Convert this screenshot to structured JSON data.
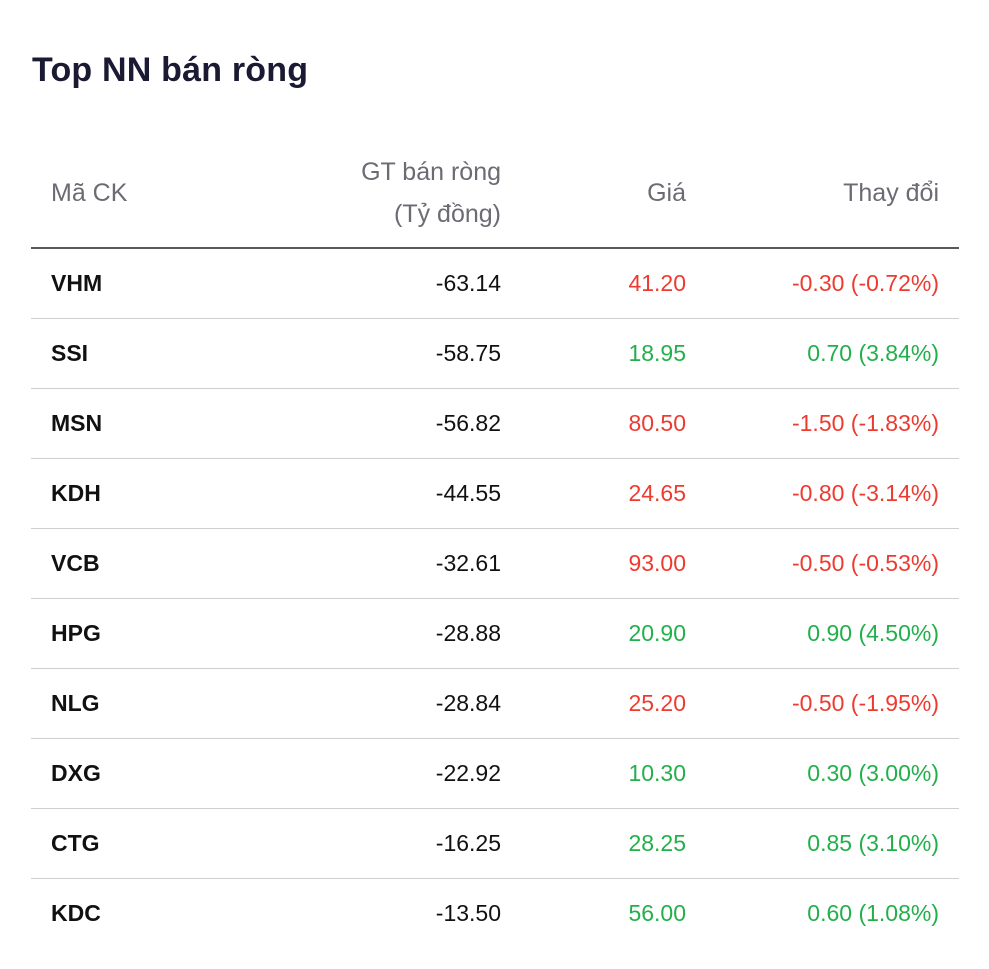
{
  "title": "Top NN bán ròng",
  "columns": {
    "symbol": "Mã CK",
    "net_value_line1": "GT bán ròng",
    "net_value_line2": "(Tỷ đồng)",
    "price": "Giá",
    "change": "Thay đổi"
  },
  "colors": {
    "up": "#22b04b",
    "down": "#ee3b30"
  },
  "rows": [
    {
      "symbol": "VHM",
      "net_value": "-63.14",
      "price": "41.20",
      "change": "-0.30 (-0.72%)",
      "direction": "down"
    },
    {
      "symbol": "SSI",
      "net_value": "-58.75",
      "price": "18.95",
      "change": "0.70 (3.84%)",
      "direction": "up"
    },
    {
      "symbol": "MSN",
      "net_value": "-56.82",
      "price": "80.50",
      "change": "-1.50 (-1.83%)",
      "direction": "down"
    },
    {
      "symbol": "KDH",
      "net_value": "-44.55",
      "price": "24.65",
      "change": "-0.80 (-3.14%)",
      "direction": "down"
    },
    {
      "symbol": "VCB",
      "net_value": "-32.61",
      "price": "93.00",
      "change": "-0.50 (-0.53%)",
      "direction": "down"
    },
    {
      "symbol": "HPG",
      "net_value": "-28.88",
      "price": "20.90",
      "change": "0.90 (4.50%)",
      "direction": "up"
    },
    {
      "symbol": "NLG",
      "net_value": "-28.84",
      "price": "25.20",
      "change": "-0.50 (-1.95%)",
      "direction": "down"
    },
    {
      "symbol": "DXG",
      "net_value": "-22.92",
      "price": "10.30",
      "change": "0.30 (3.00%)",
      "direction": "up"
    },
    {
      "symbol": "CTG",
      "net_value": "-16.25",
      "price": "28.25",
      "change": "0.85 (3.10%)",
      "direction": "up"
    },
    {
      "symbol": "KDC",
      "net_value": "-13.50",
      "price": "56.00",
      "change": "0.60 (1.08%)",
      "direction": "up"
    }
  ]
}
